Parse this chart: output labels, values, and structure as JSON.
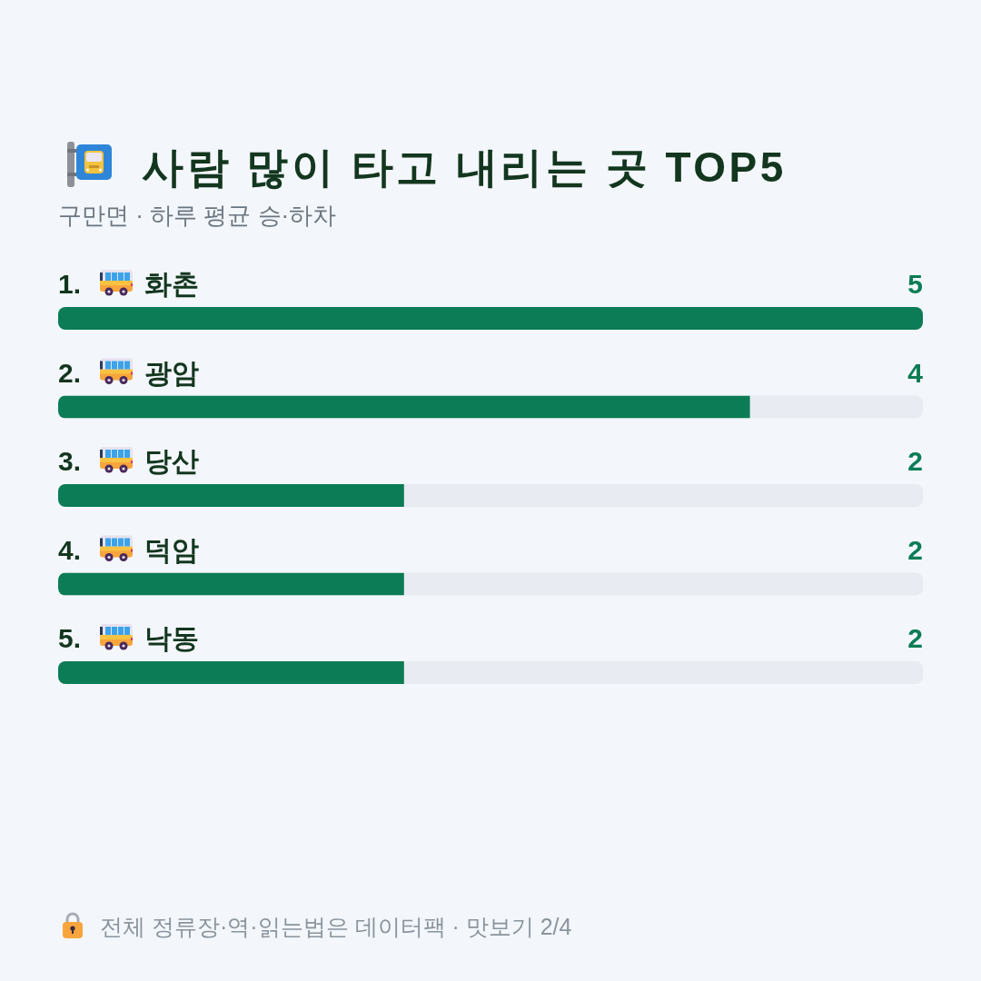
{
  "chart_data": {
    "type": "bar",
    "orientation": "horizontal",
    "title": "사람 많이 타고 내리는 곳 TOP5",
    "subtitle": "구만면 · 하루 평균 승·하차",
    "categories": [
      "1. 화촌",
      "2. 광암",
      "3. 당산",
      "4. 덕암",
      "5. 낙동"
    ],
    "values": [
      5,
      4,
      2,
      2,
      2
    ],
    "color": "#0b7c55",
    "data_labels": true,
    "bands": [
      {
        "axis": "x",
        "from": 0,
        "to": 5,
        "color": "#e8ecf2"
      }
    ],
    "annotations": [
      "전체 정류장·역·읽는법은 데이터팩 · 맛보기 2/4"
    ]
  }
}
